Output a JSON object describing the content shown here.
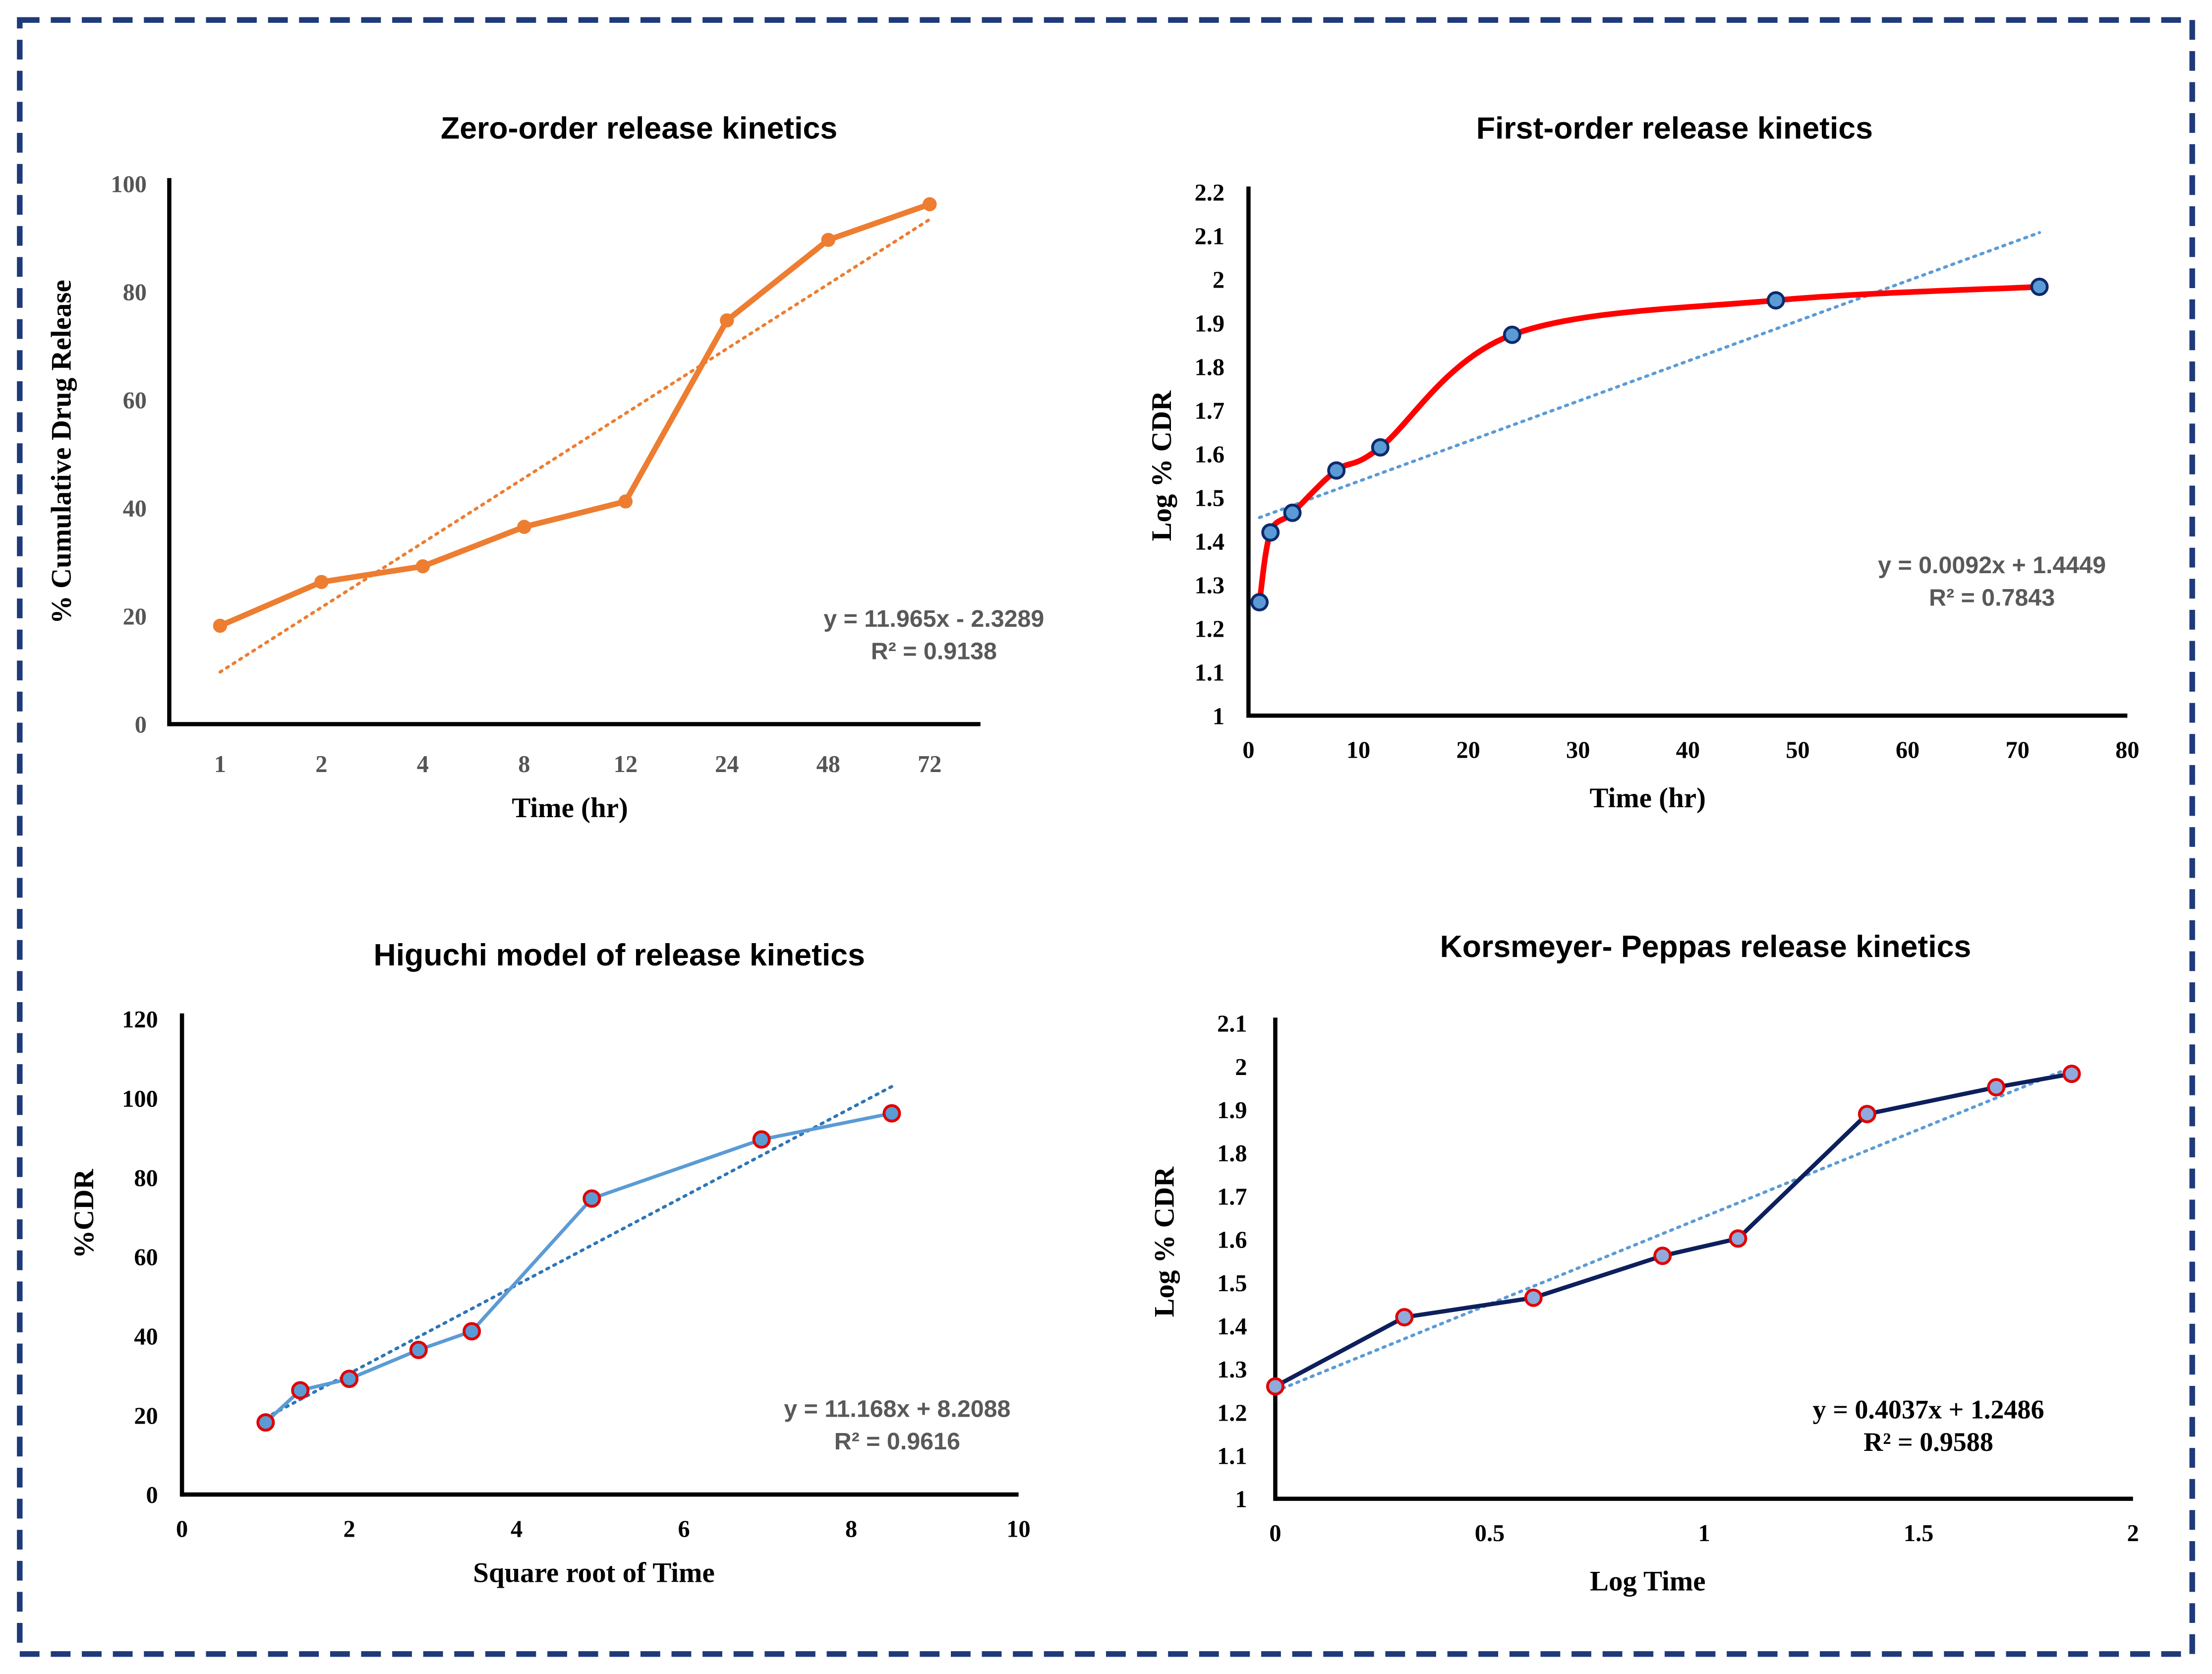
{
  "chart_data": [
    {
      "type": "line",
      "title": "Zero-order release kinetics",
      "xlabel": "Time (hr)",
      "ylabel": "% Cumulative Drug Release",
      "categories": [
        "1",
        "2",
        "4",
        "8",
        "12",
        "24",
        "48",
        "72"
      ],
      "values": [
        18.2,
        26.3,
        29.2,
        36.5,
        41.2,
        74.7,
        89.6,
        96.2
      ],
      "ylim": [
        0,
        100
      ],
      "yticks": [
        "0",
        "20",
        "40",
        "60",
        "80",
        "100"
      ],
      "trendline": {
        "type": "linear",
        "slope": 11.965,
        "intercept": -2.3289,
        "equation": "y = 11.965x - 2.3289",
        "r2": "R² = 0.9138"
      },
      "colors": {
        "series": "#ED7D31",
        "trend": "#ED7D31"
      },
      "grid": false
    },
    {
      "type": "line",
      "title": "First-order release kinetics",
      "xlabel": "Time (hr)",
      "ylabel": "Log % CDR",
      "x": [
        1,
        2,
        4,
        8,
        12,
        24,
        48,
        72
      ],
      "y": [
        1.26,
        1.42,
        1.465,
        1.562,
        1.615,
        1.873,
        1.952,
        1.983
      ],
      "xlim": [
        0,
        80
      ],
      "ylim": [
        1,
        2.2
      ],
      "xticks": [
        "0",
        "10",
        "20",
        "30",
        "40",
        "50",
        "60",
        "70",
        "80"
      ],
      "yticks": [
        "1",
        "1.1",
        "1.2",
        "1.3",
        "1.4",
        "1.5",
        "1.6",
        "1.7",
        "1.8",
        "1.9",
        "2",
        "2.1",
        "2.2"
      ],
      "smooth": true,
      "trendline": {
        "type": "linear",
        "slope": 0.0092,
        "intercept": 1.4449,
        "equation": "y = 0.0092x + 1.4449",
        "r2": "R² = 0.7843"
      },
      "colors": {
        "series": "#FF0000",
        "marker_fill": "#5B9BD5",
        "marker_edge": "#0D2A6B",
        "trend": "#5B9BD5"
      },
      "grid": false
    },
    {
      "type": "line",
      "title": "Higuchi model of release kinetics",
      "xlabel": "Square root of Time",
      "ylabel": "%CDR",
      "x": [
        1,
        1.414,
        2,
        2.828,
        3.464,
        4.899,
        6.928,
        8.485
      ],
      "y": [
        18.2,
        26.3,
        29.2,
        36.5,
        41.2,
        74.7,
        89.6,
        96.2
      ],
      "xlim": [
        0,
        10
      ],
      "ylim": [
        0,
        120
      ],
      "xticks": [
        "0",
        "2",
        "4",
        "6",
        "8",
        "10"
      ],
      "yticks": [
        "0",
        "20",
        "40",
        "60",
        "80",
        "100",
        "120"
      ],
      "trendline": {
        "type": "linear",
        "slope": 11.168,
        "intercept": 8.2088,
        "equation": "y = 11.168x + 8.2088",
        "r2": "R² = 0.9616"
      },
      "colors": {
        "series": "#5B9BD5",
        "marker_fill": "#5B9BD5",
        "marker_edge": "#E00000",
        "trend": "#2E75B6"
      },
      "grid": false
    },
    {
      "type": "line",
      "title": "Korsmeyer- Peppas release kinetics",
      "xlabel": "Log Time",
      "ylabel": "Log % CDR",
      "x": [
        0,
        0.301,
        0.602,
        0.903,
        1.079,
        1.38,
        1.681,
        1.857
      ],
      "y": [
        1.26,
        1.42,
        1.465,
        1.562,
        1.602,
        1.89,
        1.952,
        1.983
      ],
      "xlim": [
        0,
        2
      ],
      "ylim": [
        1,
        2.1
      ],
      "xticks": [
        "0",
        "0.5",
        "1",
        "1.5",
        "2"
      ],
      "yticks": [
        "1",
        "1.1",
        "1.2",
        "1.3",
        "1.4",
        "1.5",
        "1.6",
        "1.7",
        "1.8",
        "1.9",
        "2",
        "2.1"
      ],
      "trendline": {
        "type": "linear",
        "slope": 0.4037,
        "intercept": 1.2486,
        "equation": "y = 0.4037x + 1.2486",
        "r2": "R² = 0.9588"
      },
      "colors": {
        "series": "#0D1F5C",
        "marker_fill": "#8FAADC",
        "marker_edge": "#E00000",
        "trend": "#5B9BD5"
      },
      "grid": false
    }
  ],
  "border_color": "#1F3A7A"
}
